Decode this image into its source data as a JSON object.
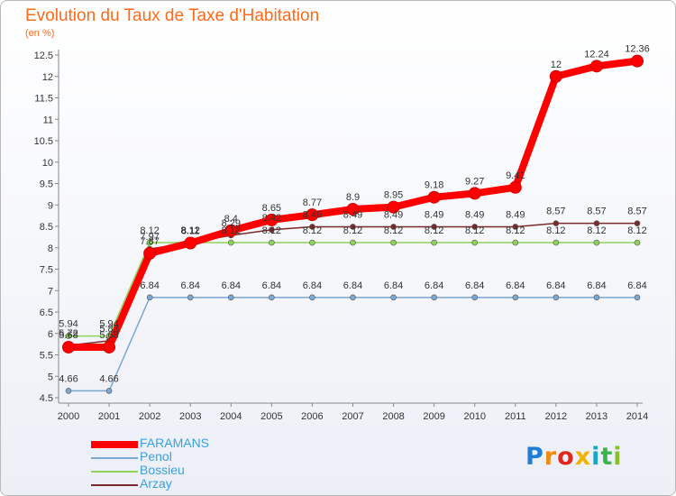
{
  "title": "Evolution du Taux de Taxe d'Habitation",
  "subtitle": "(en %)",
  "logo": [
    "P",
    "r",
    "o",
    "x",
    "i",
    "t",
    "i"
  ],
  "chart_data": {
    "type": "line",
    "title": "Evolution du Taux de Taxe d'Habitation",
    "ylabel": "(en %)",
    "xlabel": "",
    "x": [
      "2000",
      "2001",
      "2002",
      "2003",
      "2004",
      "2005",
      "2006",
      "2007",
      "2008",
      "2009",
      "2010",
      "2011",
      "2012",
      "2013",
      "2014"
    ],
    "ylim": [
      4.5,
      12.5
    ],
    "yticks": [
      "4.5",
      "5",
      "5.5",
      "6",
      "6.5",
      "7",
      "7.5",
      "8",
      "8.5",
      "9",
      "9.5",
      "10",
      "10.5",
      "11",
      "11.5",
      "12",
      "12.5"
    ],
    "grid": false,
    "legend_position": "bottom-left",
    "series": [
      {
        "name": "FARAMANS",
        "color": "#ff0000",
        "values": [
          5.68,
          5.68,
          7.87,
          8.11,
          8.4,
          8.65,
          8.77,
          8.9,
          8.95,
          9.18,
          9.27,
          9.41,
          12.0,
          12.24,
          12.36
        ],
        "labels": [
          "5.68",
          "5.68",
          "7.87",
          "8.11",
          "8.4",
          "8.65",
          "8.77",
          "8.9",
          "8.95",
          "9.18",
          "9.27",
          "9.41",
          "12",
          "12.24",
          "12.36"
        ]
      },
      {
        "name": "Penol",
        "color": "#7ba7d3",
        "values": [
          4.66,
          4.66,
          6.84,
          6.84,
          6.84,
          6.84,
          6.84,
          6.84,
          6.84,
          6.84,
          6.84,
          6.84,
          6.84,
          6.84,
          6.84
        ],
        "labels": [
          "4.66",
          "4.66",
          "6.84",
          "6.84",
          "6.84",
          "6.84",
          "6.84",
          "6.84",
          "6.84",
          "6.84",
          "6.84",
          "6.84",
          "6.84",
          "6.84",
          "6.84"
        ]
      },
      {
        "name": "Bossieu",
        "color": "#8fd35a",
        "values": [
          5.94,
          5.94,
          8.12,
          8.12,
          8.12,
          8.12,
          8.12,
          8.12,
          8.12,
          8.12,
          8.12,
          8.12,
          8.12,
          8.12,
          8.12
        ],
        "labels": [
          "5.94",
          "5.94",
          "8.12",
          "8.12",
          "8.12",
          "8.12",
          "8.12",
          "8.12",
          "8.12",
          "8.12",
          "8.12",
          "8.12",
          "8.12",
          "8.12",
          "8.12"
        ]
      },
      {
        "name": "Arzay",
        "color": "#7a2a2a",
        "values": [
          5.72,
          5.83,
          7.97,
          8.12,
          8.29,
          8.42,
          8.49,
          8.49,
          8.49,
          8.49,
          8.49,
          8.49,
          8.57,
          8.57,
          8.57
        ],
        "labels": [
          "5.72",
          "5.83",
          "7.97",
          "8.12",
          "8.29",
          "8.42",
          "8.49",
          "8.49",
          "8.49",
          "8.49",
          "8.49",
          "8.49",
          "8.57",
          "8.57",
          "8.57"
        ]
      }
    ]
  }
}
